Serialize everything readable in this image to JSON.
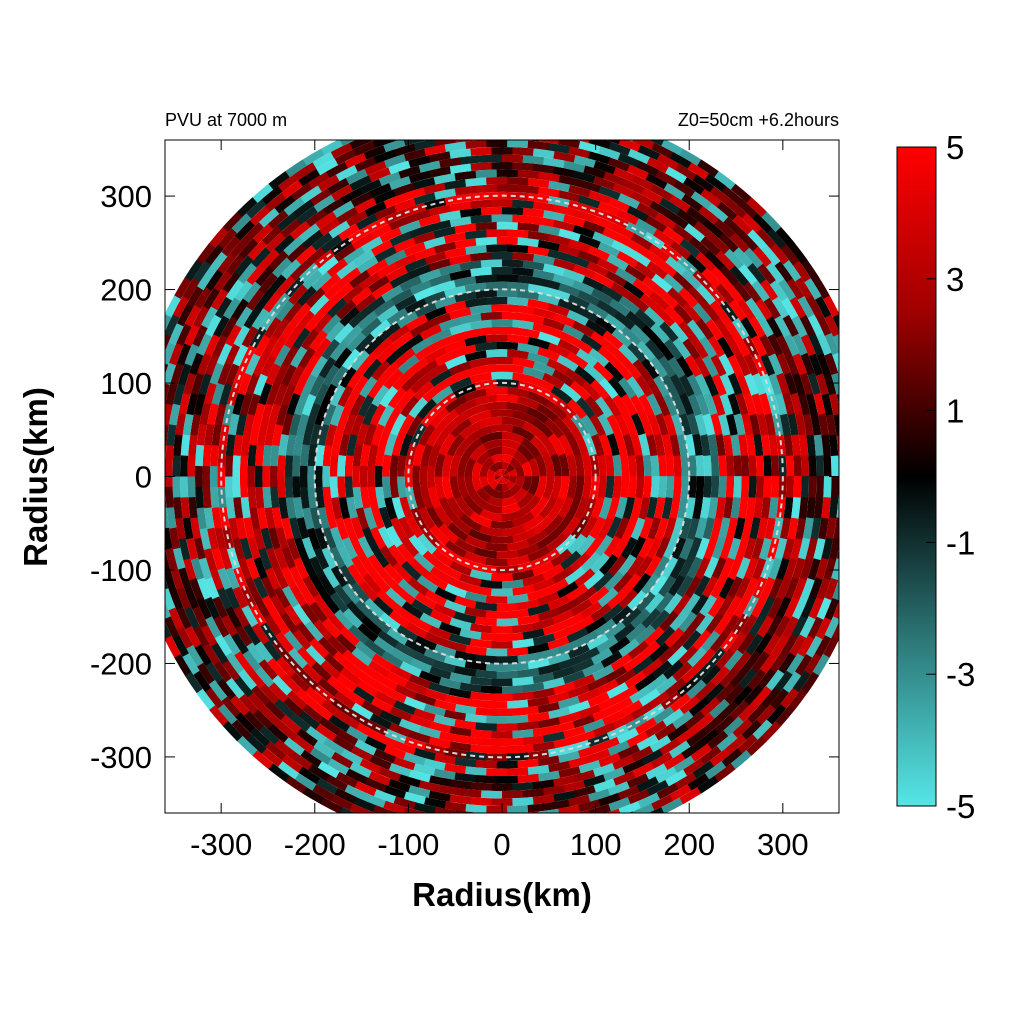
{
  "chart_data": {
    "type": "heatmap",
    "title_left": "PVU at  7000 m",
    "title_right": "Z0=50cm  +6.2hours",
    "xlabel": "Radius(km)",
    "ylabel": "Radius(km)",
    "xlim": [
      -360,
      360
    ],
    "ylim": [
      -360,
      360
    ],
    "x_ticks": [
      -300,
      -200,
      -100,
      0,
      100,
      200,
      300
    ],
    "y_ticks": [
      300,
      200,
      100,
      0,
      -100,
      -200,
      -300
    ],
    "domain_radius_km": 400,
    "reference_circles_km": [
      100,
      200,
      300
    ],
    "colorbar": {
      "min": -5,
      "max": 5,
      "ticks": [
        5,
        3,
        1,
        -1,
        -3,
        -5
      ],
      "colors": {
        "positive": "#ff0000",
        "zero": "#000000",
        "negative": "#55e6e6"
      }
    },
    "ring_bands_km": [
      {
        "r_min": 0,
        "r_max": 90,
        "mean_value": 2.5
      },
      {
        "r_min": 90,
        "r_max": 120,
        "mean_value": 3
      },
      {
        "r_min": 120,
        "r_max": 190,
        "mean_value": 3.5
      },
      {
        "r_min": 190,
        "r_max": 230,
        "mean_value": -2
      },
      {
        "r_min": 230,
        "r_max": 320,
        "mean_value": 3
      },
      {
        "r_min": 320,
        "r_max": 400,
        "mean_value": 1.5
      }
    ]
  }
}
